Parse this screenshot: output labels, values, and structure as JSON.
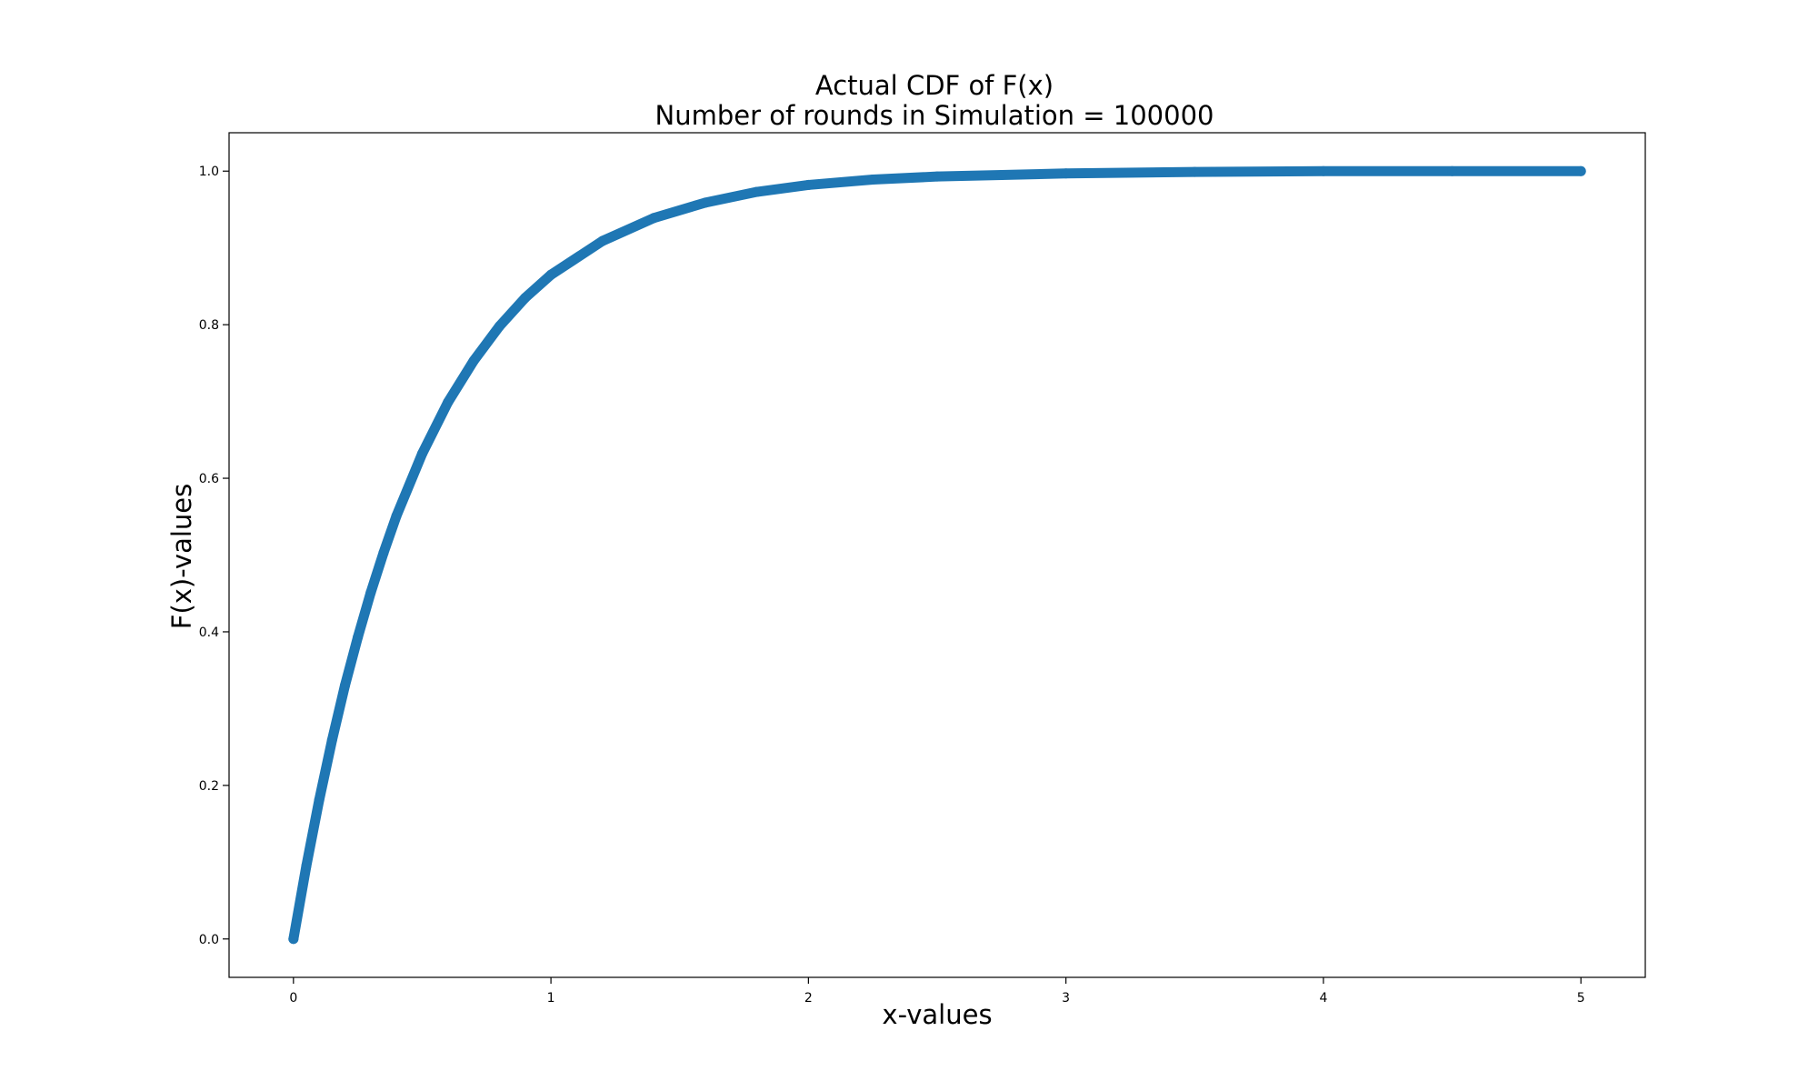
{
  "chart_data": {
    "type": "scatter",
    "title": "Actual CDF of F(x)",
    "subtitle": "Number of rounds in Simulation = 100000",
    "xlabel": "x-values",
    "ylabel": "F(x)-values",
    "xlim": [
      -0.25,
      5.25
    ],
    "ylim": [
      -0.05,
      1.05
    ],
    "x_ticks": [
      0,
      1,
      2,
      3,
      4,
      5
    ],
    "x_tick_labels": [
      "0",
      "1",
      "2",
      "3",
      "4",
      "5"
    ],
    "y_ticks": [
      0.0,
      0.2,
      0.4,
      0.6,
      0.8,
      1.0
    ],
    "y_tick_labels": [
      "0.0",
      "0.2",
      "0.4",
      "0.6",
      "0.8",
      "1.0"
    ],
    "grid": false,
    "legend": "none",
    "series": [
      {
        "color": "#1f77b4",
        "x": [
          0,
          0.05,
          0.1,
          0.15,
          0.2,
          0.25,
          0.3,
          0.35,
          0.4,
          0.5,
          0.6,
          0.7,
          0.8,
          0.9,
          1.0,
          1.2,
          1.4,
          1.6,
          1.8,
          2.0,
          2.25,
          2.5,
          2.75,
          3.0,
          3.5,
          4.0,
          4.5,
          5.0
        ],
        "y": [
          0.0,
          0.095,
          0.181,
          0.259,
          0.33,
          0.393,
          0.451,
          0.503,
          0.551,
          0.632,
          0.699,
          0.753,
          0.798,
          0.835,
          0.865,
          0.909,
          0.939,
          0.959,
          0.973,
          0.982,
          0.989,
          0.993,
          0.995,
          0.997,
          0.999,
          1.0,
          1.0,
          1.0
        ]
      }
    ]
  }
}
